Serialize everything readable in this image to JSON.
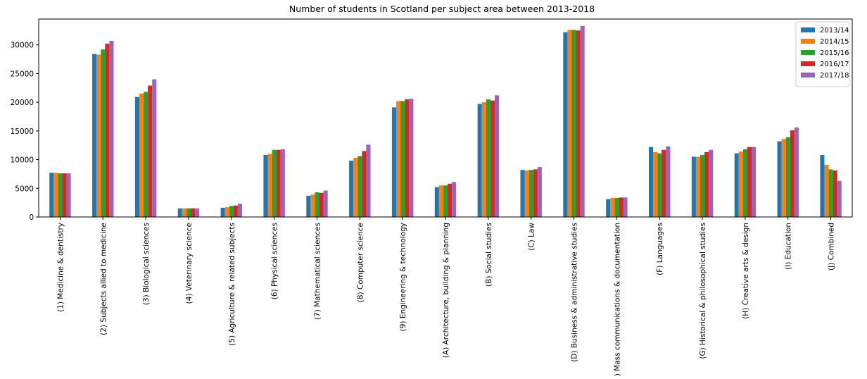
{
  "chart_data": {
    "type": "bar",
    "title": "Number of students in Scotland per subject area between 2013-2018",
    "xlabel": "",
    "ylabel": "",
    "ylim": [
      0,
      34500
    ],
    "yticks": [
      0,
      5000,
      10000,
      15000,
      20000,
      25000,
      30000
    ],
    "grid": false,
    "legend_position": "top-right",
    "categories": [
      "(1) Medicine & dentistry",
      "(2) Subjects allied to medicine",
      "(3) Biological sciences",
      "(4) Veterinary science",
      "(5) Agriculture & related subjects",
      "(6) Physical sciences",
      "(7) Mathematical sciences",
      "(8) Computer science",
      "(9) Engineering & technology",
      "(A) Architecture, building & planning",
      "(B) Social studies",
      "(C) Law",
      "(D) Business & administrative studies",
      ") Mass communications & documentation",
      "(F) Languages",
      "(G) Historical & philosophical studies",
      "(H) Creative arts & design",
      "(I) Education",
      "(J) Combined"
    ],
    "series": [
      {
        "name": "2013/14",
        "color": "#1f77b4",
        "values": [
          7700,
          28400,
          20900,
          1500,
          1600,
          10800,
          3700,
          9800,
          19100,
          5200,
          19700,
          8200,
          32200,
          3100,
          12200,
          10500,
          11100,
          13200,
          10800
        ]
      },
      {
        "name": "2014/15",
        "color": "#ff7f0e",
        "values": [
          7700,
          28300,
          21500,
          1500,
          1700,
          11000,
          3900,
          10300,
          20200,
          5500,
          20000,
          8100,
          32600,
          3300,
          11300,
          10500,
          11400,
          13600,
          9100
        ]
      },
      {
        "name": "2015/16",
        "color": "#2ca02c",
        "values": [
          7600,
          29200,
          21800,
          1500,
          1900,
          11700,
          4300,
          10600,
          20200,
          5500,
          20500,
          8200,
          32600,
          3300,
          11100,
          10800,
          11800,
          13900,
          8300
        ]
      },
      {
        "name": "2016/17",
        "color": "#d62728",
        "values": [
          7600,
          30200,
          22900,
          1500,
          2000,
          11700,
          4200,
          11500,
          20500,
          5800,
          20300,
          8300,
          32500,
          3400,
          11700,
          11300,
          12200,
          15100,
          8100
        ]
      },
      {
        "name": "2017/18",
        "color": "#9467bd",
        "values": [
          7600,
          30700,
          24000,
          1500,
          2300,
          11800,
          4600,
          12600,
          20600,
          6100,
          21200,
          8700,
          33300,
          3400,
          12300,
          11700,
          12200,
          15600,
          6300
        ]
      }
    ]
  }
}
